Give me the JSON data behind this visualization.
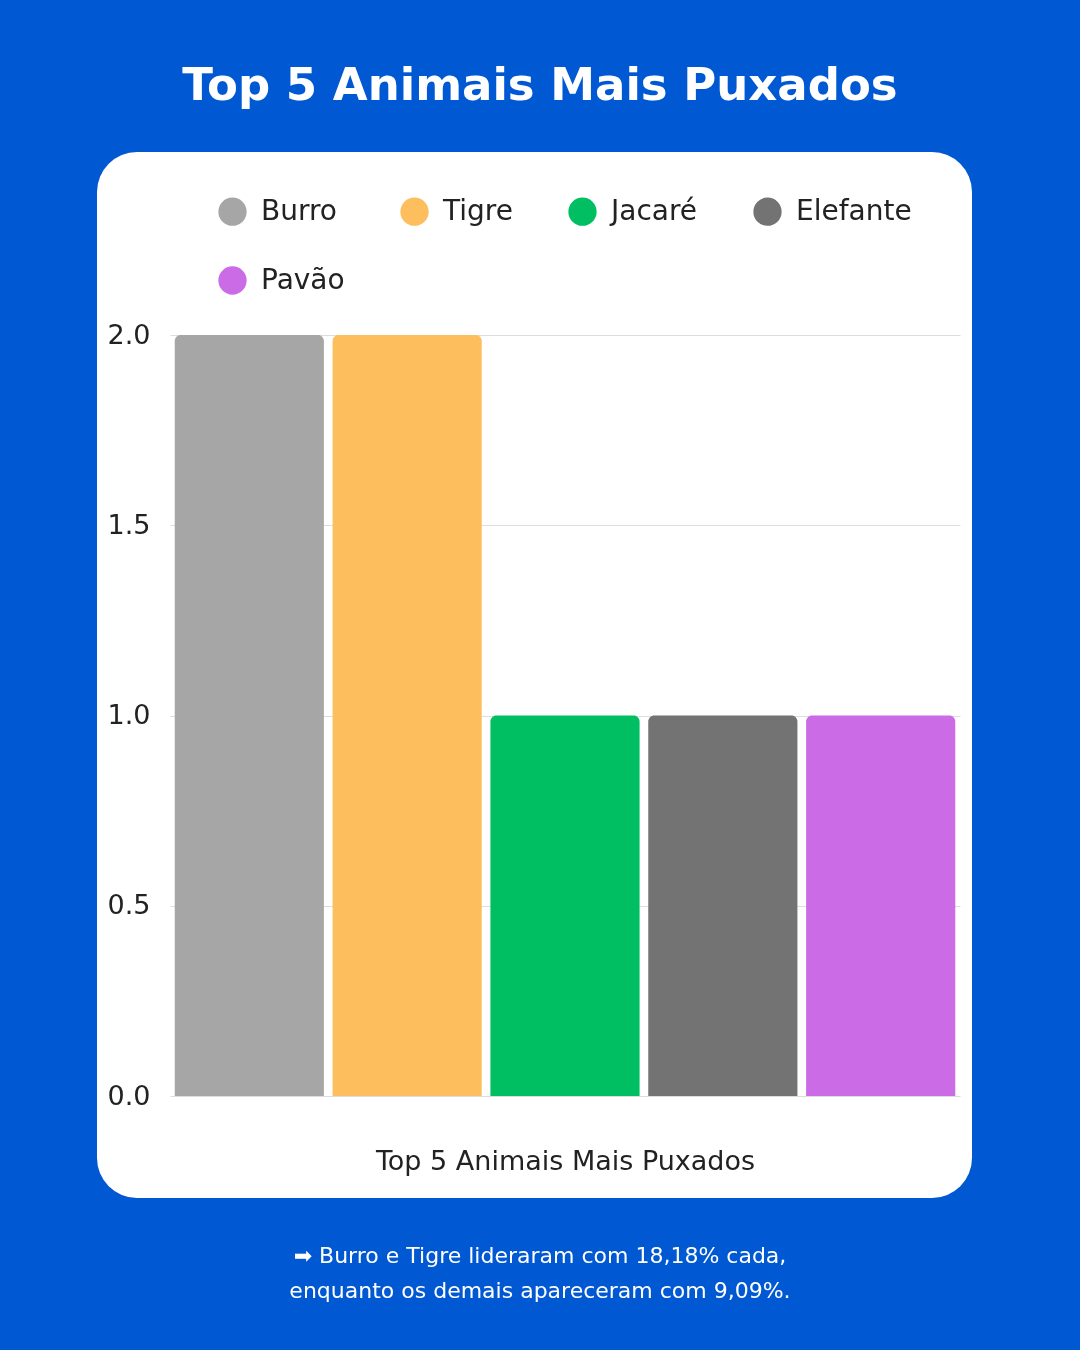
{
  "chart_data": {
    "type": "bar",
    "title": "Top 5 Animais Mais Puxados",
    "xlabel": "Top 5 Animais Mais Puxados",
    "categories": [
      null,
      null,
      null,
      null,
      null
    ],
    "series": [
      {
        "name": "Burro",
        "color": "#a6a6a6",
        "values": [
          2,
          null,
          null,
          null,
          null
        ]
      },
      {
        "name": "Tigre",
        "color": "#fdbf5e",
        "values": [
          null,
          2,
          null,
          null,
          null
        ]
      },
      {
        "name": "Jacaré",
        "color": "#00bf63",
        "values": [
          null,
          null,
          1,
          null,
          null
        ]
      },
      {
        "name": "Elefante",
        "color": "#737373",
        "values": [
          null,
          null,
          null,
          1,
          null
        ]
      },
      {
        "name": "Pavão",
        "color": "#cb6ce6",
        "values": [
          null,
          null,
          null,
          null,
          1
        ]
      }
    ],
    "ylim": [
      0,
      2
    ],
    "yticks": [
      {
        "value": 0,
        "label": "0.0"
      },
      0.5,
      {
        "value": 1,
        "label": "1.0"
      },
      1.5,
      {
        "value": 2,
        "label": "2.0"
      }
    ],
    "grid": "y",
    "legend": "top",
    "annotations": [
      "➡ Burro e Tigre lideraram com 18,18% cada, enquanto os demais apareceram com 9,09%."
    ]
  }
}
